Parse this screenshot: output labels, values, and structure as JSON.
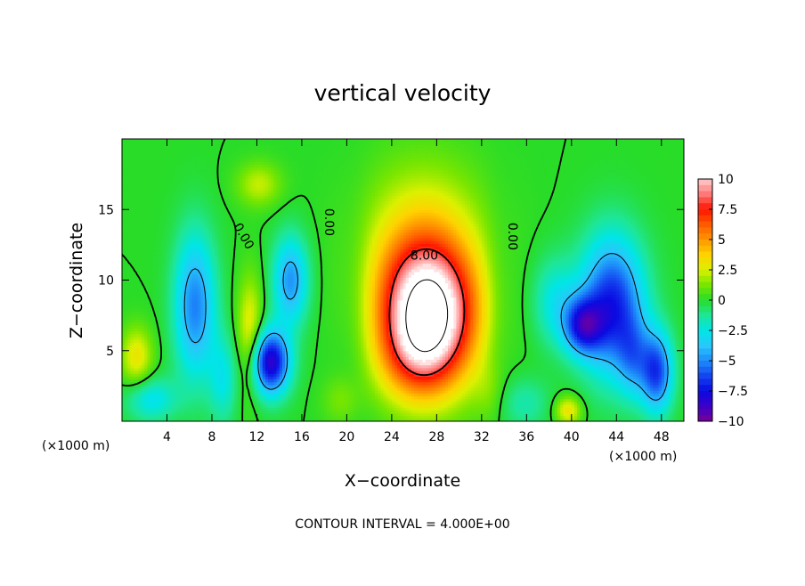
{
  "chart_data": {
    "type": "heatmap",
    "title": "vertical velocity",
    "xlabel": "X−coordinate",
    "ylabel": "Z−coordinate",
    "x_unit_label": "(×1000 m)",
    "z_unit_label": "(×1000 m)",
    "footer": "CONTOUR INTERVAL = 4.000E+00",
    "xlim": [
      0,
      50
    ],
    "ylim": [
      0,
      20
    ],
    "x_ticks": [
      4,
      8,
      12,
      16,
      20,
      24,
      28,
      32,
      36,
      40,
      44,
      48
    ],
    "y_ticks": [
      5,
      10,
      15
    ],
    "colorbar": {
      "range": [
        -10,
        10
      ],
      "ticks": [
        "10",
        "7.5",
        "5",
        "2.5",
        "0",
        "−2.5",
        "−5",
        "−7.5",
        "−10"
      ],
      "tick_values": [
        10,
        7.5,
        5,
        2.5,
        0,
        -2.5,
        -5,
        -7.5,
        -10
      ]
    },
    "contour_labels": [
      {
        "text": "0.00",
        "x": 10.8,
        "z": 13.1,
        "rotate": 60
      },
      {
        "text": "0.00",
        "x": 18.4,
        "z": 14.1,
        "rotate": 90
      },
      {
        "text": "8.00",
        "x": 26.9,
        "z": 11.7,
        "rotate": 0
      },
      {
        "text": "0.00",
        "x": 34.7,
        "z": 13.1,
        "rotate": 90
      }
    ],
    "cells": [
      {
        "x": 27.3,
        "z": 7.2,
        "sx": 3.0,
        "sz": 3.4,
        "a": 10.5
      },
      {
        "x": 26.8,
        "z": 9.8,
        "sx": 3.4,
        "sz": 3.4,
        "a": 3.5
      },
      {
        "x": 26.2,
        "z": 4.4,
        "sx": 2.4,
        "sz": 2.2,
        "a": 2.5
      },
      {
        "x": 26.8,
        "z": 14.2,
        "sx": 3.8,
        "sz": 3.6,
        "a": 2.0
      },
      {
        "x": 6.5,
        "z": 8.2,
        "sx": 1.3,
        "sz": 3.6,
        "a": -5.2
      },
      {
        "x": 13.2,
        "z": 4.2,
        "sx": 1.2,
        "sz": 1.6,
        "a": -8.5
      },
      {
        "x": 15.0,
        "z": 10.0,
        "sx": 1.1,
        "sz": 2.2,
        "a": -4.8
      },
      {
        "x": 2.6,
        "z": 1.6,
        "sx": 1.6,
        "sz": 1.1,
        "a": -2.8
      },
      {
        "x": 41.0,
        "z": 6.8,
        "sx": 1.2,
        "sz": 1.4,
        "a": -6.0
      },
      {
        "x": 43.6,
        "z": 8.2,
        "sx": 2.0,
        "sz": 3.4,
        "a": -7.2
      },
      {
        "x": 45.5,
        "z": 4.5,
        "sx": 1.0,
        "sz": 2.0,
        "a": -3.0
      },
      {
        "x": 47.6,
        "z": 3.5,
        "sx": 1.0,
        "sz": 2.0,
        "a": -6.2
      },
      {
        "x": 38.5,
        "z": 8.5,
        "sx": 1.4,
        "sz": 2.2,
        "a": -2.4
      },
      {
        "x": 9.0,
        "z": 3.0,
        "sx": 0.9,
        "sz": 2.2,
        "a": -2.4
      },
      {
        "x": 11.4,
        "z": 6.2,
        "sx": 0.8,
        "sz": 2.8,
        "a": 3.2
      },
      {
        "x": 12.2,
        "z": 16.8,
        "sx": 1.4,
        "sz": 1.1,
        "a": 2.2
      },
      {
        "x": 1.3,
        "z": 4.6,
        "sx": 1.0,
        "sz": 1.5,
        "a": 3.0
      },
      {
        "x": 39.7,
        "z": 0.8,
        "sx": 0.8,
        "sz": 0.7,
        "a": 3.2
      },
      {
        "x": 19.5,
        "z": 1.5,
        "sx": 1.2,
        "sz": 1.2,
        "a": 1.2
      },
      {
        "x": 32.8,
        "z": 2.0,
        "sx": 1.0,
        "sz": 1.5,
        "a": 1.0
      },
      {
        "x": 35.8,
        "z": 1.3,
        "sx": 1.6,
        "sz": 1.3,
        "a": -1.6
      },
      {
        "x": 20.8,
        "z": 8.5,
        "sx": 1.1,
        "sz": 5.0,
        "a": -0.6
      },
      {
        "x": 33.5,
        "z": 8.5,
        "sx": 1.0,
        "sz": 4.5,
        "a": -0.6
      }
    ]
  }
}
